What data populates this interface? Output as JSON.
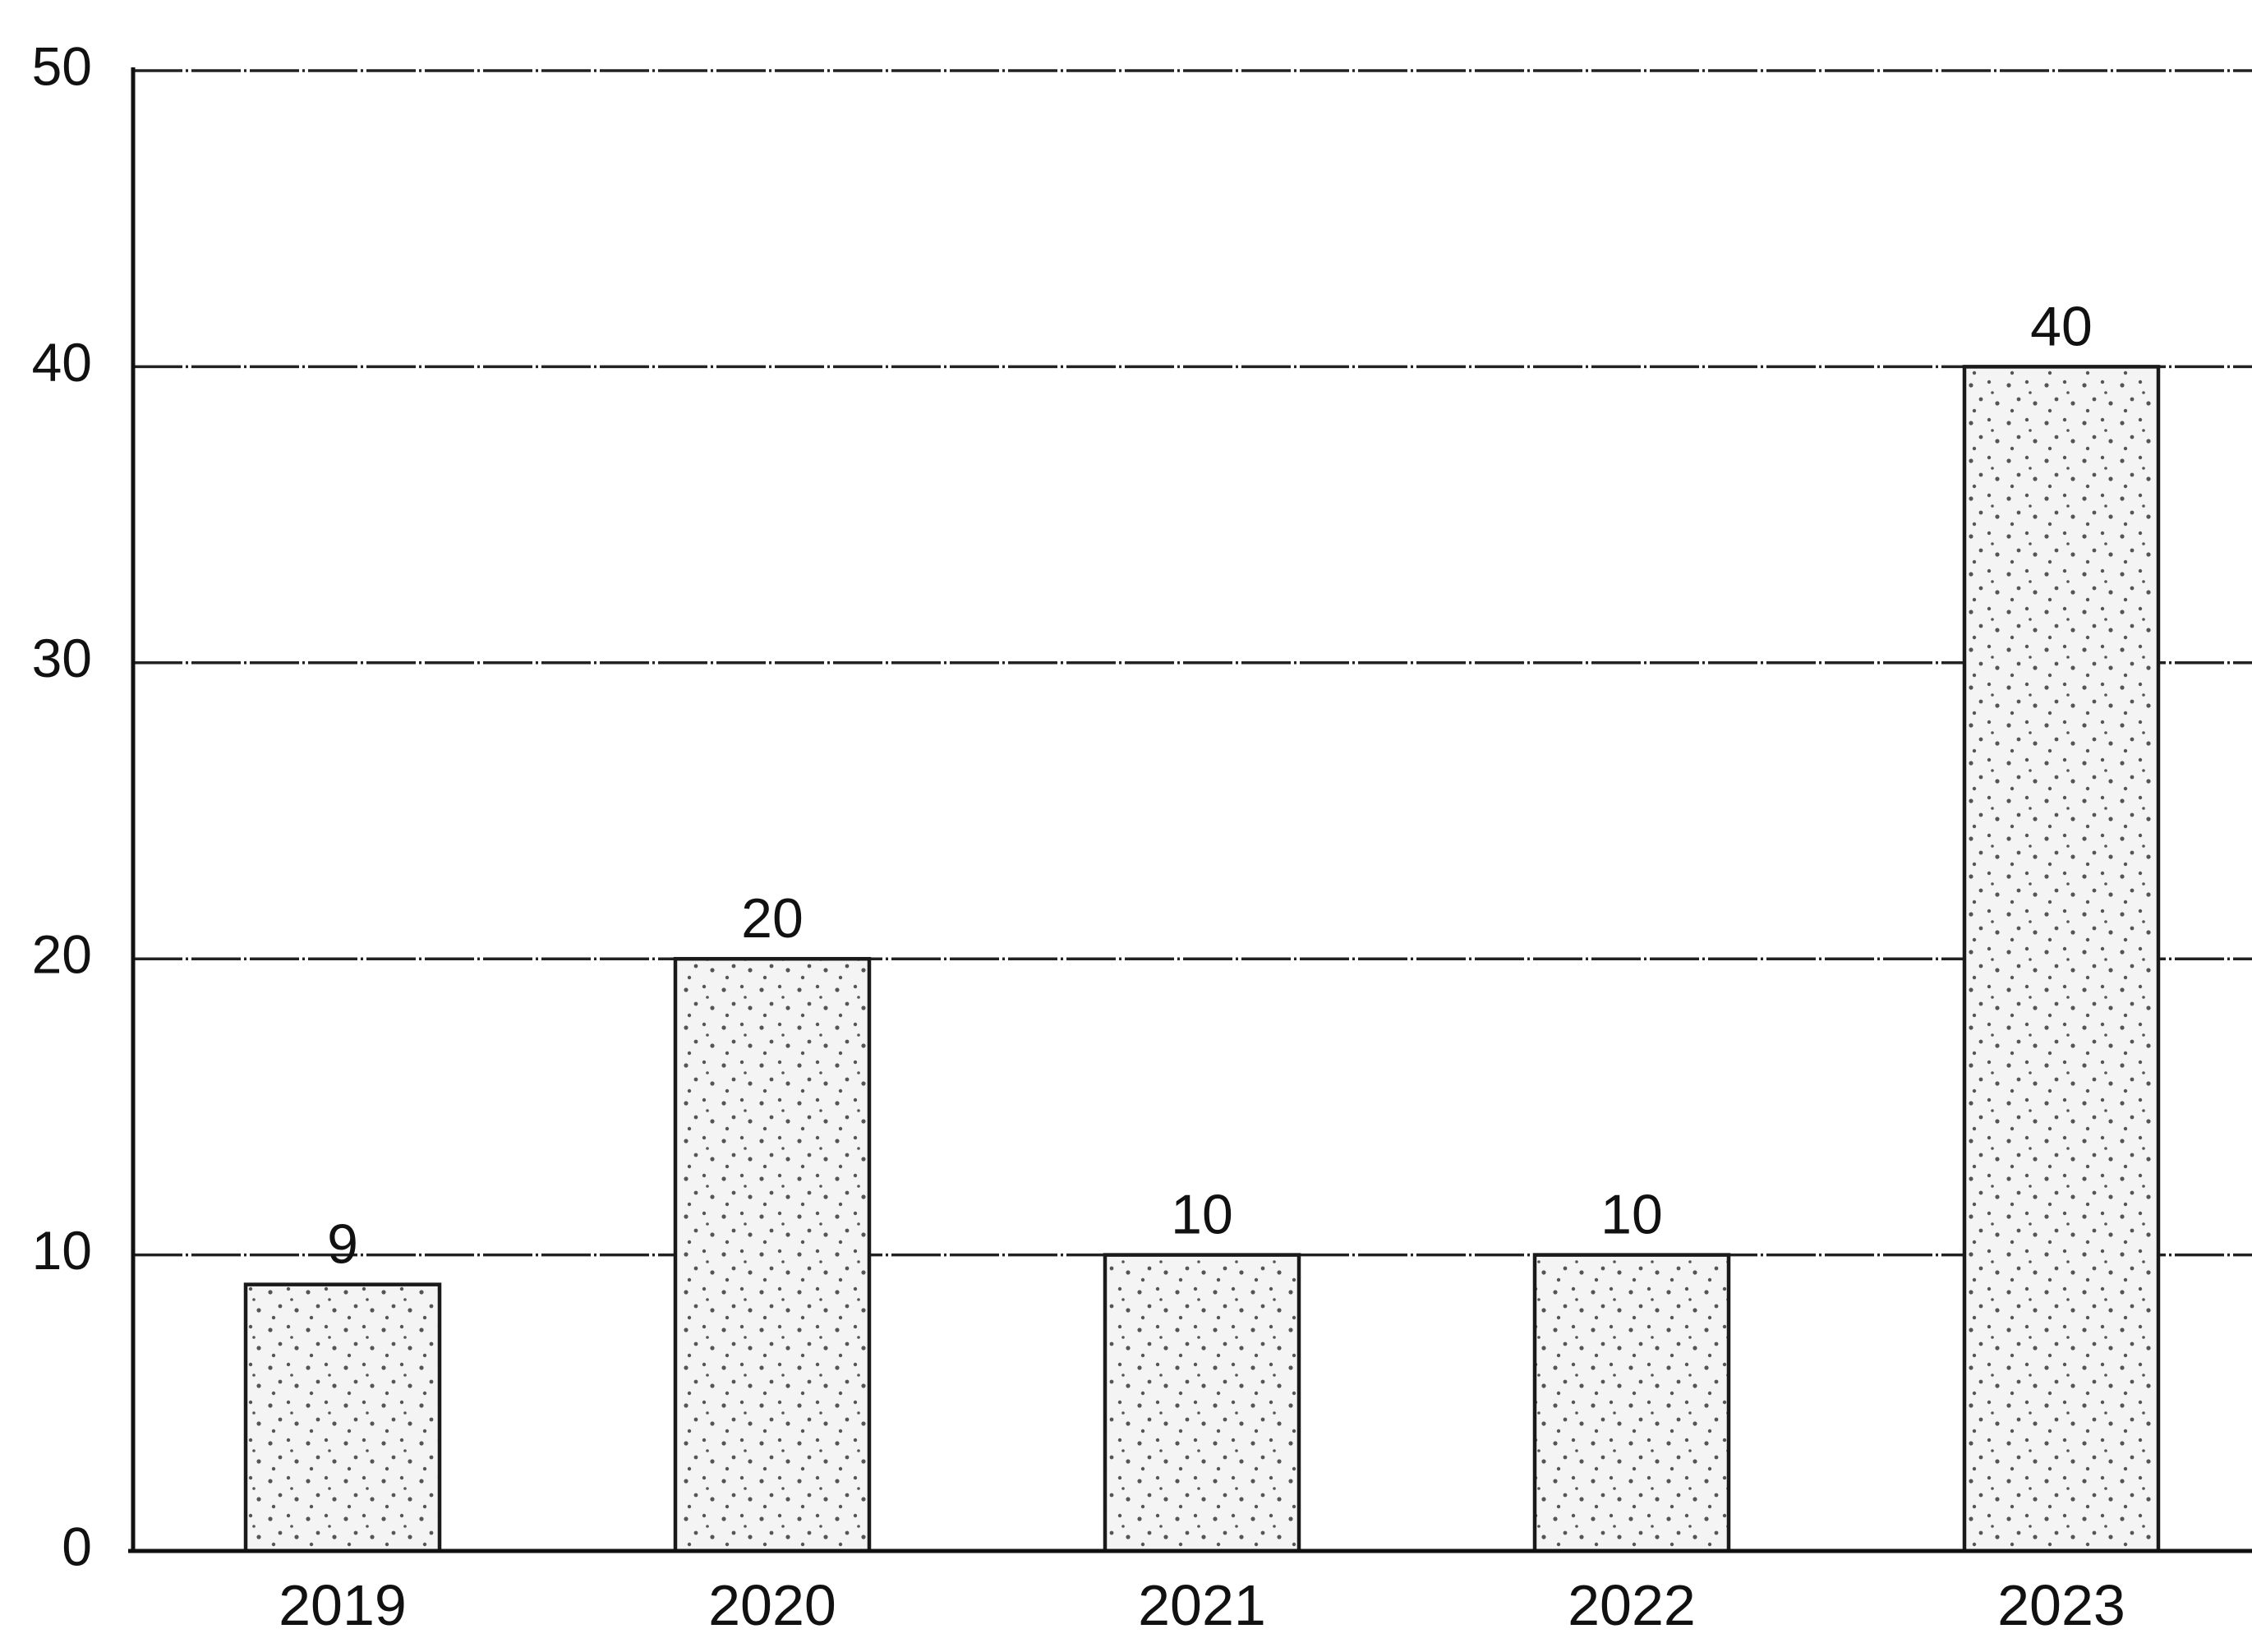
{
  "chart_data": {
    "type": "bar",
    "categories": [
      "2019",
      "2020",
      "2021",
      "2022",
      "2023"
    ],
    "values": [
      9,
      20,
      10,
      10,
      40
    ],
    "value_labels": [
      "9",
      "20",
      "10",
      "10",
      "40"
    ],
    "yticks": [
      "0",
      "10",
      "20",
      "30",
      "40",
      "50"
    ],
    "ylim": [
      0,
      50
    ],
    "grid": true,
    "bar_fill": "stippled",
    "colors": {
      "bar_fill": "#f4f4f4",
      "bar_stroke": "#1a1a1a",
      "grid": "#222222",
      "axis": "#111111",
      "stipple": "#555555"
    }
  }
}
